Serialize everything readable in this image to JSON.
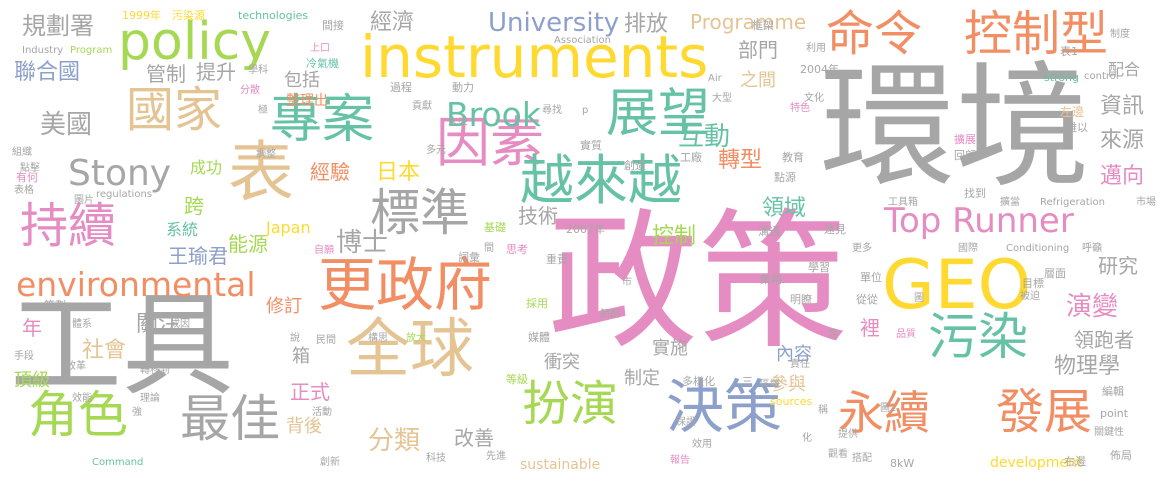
{
  "palette": {
    "pink": "#e58cc2",
    "gray": "#a6a6a6",
    "orange": "#f28e64",
    "green": "#a6d854",
    "yellow": "#ffd92f",
    "tan": "#e5c494",
    "blue": "#8da0cb",
    "teal": "#66c2a5"
  },
  "words": [
    {
      "text": "政策",
      "color": "pink"
    },
    {
      "text": "環境",
      "color": "gray"
    },
    {
      "text": "工具",
      "color": "gray"
    },
    {
      "text": "instruments",
      "color": "yellow"
    },
    {
      "text": "policy",
      "color": "green"
    },
    {
      "text": "GEO",
      "color": "yellow"
    },
    {
      "text": "更政府",
      "color": "orange"
    },
    {
      "text": "全球",
      "color": "tan"
    },
    {
      "text": "決策",
      "color": "blue"
    },
    {
      "text": "表",
      "color": "tan"
    },
    {
      "text": "專案",
      "color": "teal"
    },
    {
      "text": "國家",
      "color": "tan"
    },
    {
      "text": "因素",
      "color": "pink"
    },
    {
      "text": "標準",
      "color": "gray"
    },
    {
      "text": "越來越",
      "color": "teal"
    },
    {
      "text": "展望",
      "color": "teal"
    },
    {
      "text": "命令",
      "color": "orange"
    },
    {
      "text": "控制型",
      "color": "orange"
    },
    {
      "text": "持續",
      "color": "pink"
    },
    {
      "text": "角色",
      "color": "green"
    },
    {
      "text": "最佳",
      "color": "gray"
    },
    {
      "text": "扮演",
      "color": "green"
    },
    {
      "text": "永續",
      "color": "orange"
    },
    {
      "text": "發展",
      "color": "orange"
    },
    {
      "text": "污染",
      "color": "teal"
    },
    {
      "text": "Top Runner",
      "color": "pink"
    },
    {
      "text": "environmental",
      "color": "orange"
    },
    {
      "text": "Stony",
      "color": "gray"
    },
    {
      "text": "Brook",
      "color": "teal"
    },
    {
      "text": "University",
      "color": "blue"
    },
    {
      "text": "經濟",
      "color": "gray"
    },
    {
      "text": "排放",
      "color": "gray"
    },
    {
      "text": "Programme",
      "color": "tan"
    },
    {
      "text": "規劃署",
      "color": "gray"
    },
    {
      "text": "聯合國",
      "color": "blue"
    },
    {
      "text": "美國",
      "color": "gray"
    },
    {
      "text": "管制",
      "color": "gray"
    },
    {
      "text": "提升",
      "color": "gray"
    },
    {
      "text": "包括",
      "color": "gray"
    },
    {
      "text": "整理出",
      "color": "orange"
    },
    {
      "text": "互動",
      "color": "teal"
    },
    {
      "text": "轉型",
      "color": "orange"
    },
    {
      "text": "部門",
      "color": "gray"
    },
    {
      "text": "之間",
      "color": "tan"
    },
    {
      "text": "日本",
      "color": "yellow"
    },
    {
      "text": "經驗",
      "color": "orange"
    },
    {
      "text": "博士",
      "color": "gray"
    },
    {
      "text": "技術",
      "color": "gray"
    },
    {
      "text": "領域",
      "color": "teal"
    },
    {
      "text": "控制",
      "color": "green"
    },
    {
      "text": "資訊",
      "color": "gray"
    },
    {
      "text": "來源",
      "color": "gray"
    },
    {
      "text": "邁向",
      "color": "pink"
    },
    {
      "text": "研究",
      "color": "gray"
    },
    {
      "text": "演變",
      "color": "pink"
    },
    {
      "text": "領跑者",
      "color": "gray"
    },
    {
      "text": "物理學",
      "color": "gray"
    },
    {
      "text": "配合",
      "color": "gray"
    },
    {
      "text": "王瑜君",
      "color": "blue"
    },
    {
      "text": "能源",
      "color": "green"
    },
    {
      "text": "系統",
      "color": "teal"
    },
    {
      "text": "跨",
      "color": "green"
    },
    {
      "text": "成功",
      "color": "green"
    },
    {
      "text": "Japan",
      "color": "yellow"
    },
    {
      "text": "修訂",
      "color": "orange"
    },
    {
      "text": "關注",
      "color": "gray"
    },
    {
      "text": "社會",
      "color": "tan"
    },
    {
      "text": "頂級",
      "color": "green"
    },
    {
      "text": "年",
      "color": "pink"
    },
    {
      "text": "箱",
      "color": "gray"
    },
    {
      "text": "正式",
      "color": "pink"
    },
    {
      "text": "背後",
      "color": "tan"
    },
    {
      "text": "分類",
      "color": "tan"
    },
    {
      "text": "改善",
      "color": "gray"
    },
    {
      "text": "衝突",
      "color": "gray"
    },
    {
      "text": "制定",
      "color": "gray"
    },
    {
      "text": "實施",
      "color": "gray"
    },
    {
      "text": "內容",
      "color": "blue"
    },
    {
      "text": "參與",
      "color": "tan"
    },
    {
      "text": "裡",
      "color": "pink"
    },
    {
      "text": "sustainable",
      "color": "tan"
    },
    {
      "text": "development",
      "color": "yellow"
    },
    {
      "text": "1999年",
      "color": "yellow"
    },
    {
      "text": "污染源",
      "color": "yellow"
    },
    {
      "text": "technologies",
      "color": "teal"
    },
    {
      "text": "間接",
      "color": "gray"
    },
    {
      "text": "框架",
      "color": "gray"
    },
    {
      "text": "制度",
      "color": "gray"
    },
    {
      "text": "Association",
      "color": "gray"
    },
    {
      "text": "Industry",
      "color": "gray"
    },
    {
      "text": "Program",
      "color": "green"
    },
    {
      "text": "上口",
      "color": "pink"
    },
    {
      "text": "學科",
      "color": "gray"
    },
    {
      "text": "冷氣機",
      "color": "teal"
    },
    {
      "text": "過程",
      "color": "gray"
    },
    {
      "text": "動力",
      "color": "gray"
    },
    {
      "text": "Air",
      "color": "gray"
    },
    {
      "text": "2004年",
      "color": "gray"
    },
    {
      "text": "strong",
      "color": "teal"
    },
    {
      "text": "control",
      "color": "gray"
    },
    {
      "text": "表1",
      "color": "gray"
    },
    {
      "text": "利用",
      "color": "gray"
    },
    {
      "text": "極",
      "color": "gray"
    },
    {
      "text": "分散",
      "color": "pink"
    },
    {
      "text": "貢獻",
      "color": "gray"
    },
    {
      "text": "未來",
      "color": "gray"
    },
    {
      "text": "組織",
      "color": "gray"
    },
    {
      "text": "點擊",
      "color": "gray"
    },
    {
      "text": "有何",
      "color": "pink"
    },
    {
      "text": "表格",
      "color": "gray"
    },
    {
      "text": "調整",
      "color": "gray"
    },
    {
      "text": "多元",
      "color": "gray"
    },
    {
      "text": "實質",
      "color": "gray"
    },
    {
      "text": "創造",
      "color": "gray"
    },
    {
      "text": "工廠",
      "color": "gray"
    },
    {
      "text": "教育",
      "color": "gray"
    },
    {
      "text": "特色",
      "color": "pink"
    },
    {
      "text": "文化",
      "color": "gray"
    },
    {
      "text": "點源",
      "color": "gray"
    },
    {
      "text": "擴展",
      "color": "pink"
    },
    {
      "text": "回顧",
      "color": "gray"
    },
    {
      "text": "左邊",
      "color": "tan"
    },
    {
      "text": "難以",
      "color": "gray"
    },
    {
      "text": "市場",
      "color": "gray"
    },
    {
      "text": "找到",
      "color": "gray"
    },
    {
      "text": "工具箱",
      "color": "gray"
    },
    {
      "text": "擴當",
      "color": "gray"
    },
    {
      "text": "Refrigeration",
      "color": "gray"
    },
    {
      "text": "圖片",
      "color": "gray"
    },
    {
      "text": "regulations",
      "color": "gray"
    },
    {
      "text": "基礎",
      "color": "green"
    },
    {
      "text": "2007年",
      "color": "gray"
    },
    {
      "text": "溝通",
      "color": "gray"
    },
    {
      "text": "遠見",
      "color": "gray"
    },
    {
      "text": "更多",
      "color": "gray"
    },
    {
      "text": "國際",
      "color": "gray"
    },
    {
      "text": "Conditioning",
      "color": "gray"
    },
    {
      "text": "呼籲",
      "color": "gray"
    },
    {
      "text": "詞彙",
      "color": "gray"
    },
    {
      "text": "思考",
      "color": "pink"
    },
    {
      "text": "重責",
      "color": "gray"
    },
    {
      "text": "自願",
      "color": "pink"
    },
    {
      "text": "策略",
      "color": "gray"
    },
    {
      "text": "明瞭",
      "color": "gray"
    },
    {
      "text": "學習",
      "color": "gray"
    },
    {
      "text": "單位",
      "color": "gray"
    },
    {
      "text": "從從",
      "color": "gray"
    },
    {
      "text": "目標",
      "color": "gray"
    },
    {
      "text": "層面",
      "color": "gray"
    },
    {
      "text": "被迫",
      "color": "gray"
    },
    {
      "text": "策劃",
      "color": "gray"
    },
    {
      "text": "體系",
      "color": "gray"
    },
    {
      "text": "成因",
      "color": "gray"
    },
    {
      "text": "採用",
      "color": "green"
    },
    {
      "text": "朗朗",
      "color": "gray"
    },
    {
      "text": "構思",
      "color": "gray"
    },
    {
      "text": "放大",
      "color": "green"
    },
    {
      "text": "媒體",
      "color": "gray"
    },
    {
      "text": "民間",
      "color": "gray"
    },
    {
      "text": "品質",
      "color": "pink"
    },
    {
      "text": "手段",
      "color": "gray"
    },
    {
      "text": "改革",
      "color": "gray"
    },
    {
      "text": "轉移到",
      "color": "gray"
    },
    {
      "text": "效能",
      "color": "gray"
    },
    {
      "text": "理論",
      "color": "gray"
    },
    {
      "text": "活動",
      "color": "gray"
    },
    {
      "text": "等級",
      "color": "green"
    },
    {
      "text": "多樣化",
      "color": "gray"
    },
    {
      "text": "三",
      "color": "gray"
    },
    {
      "text": "區域",
      "color": "gray"
    },
    {
      "text": "sources",
      "color": "yellow"
    },
    {
      "text": "稱",
      "color": "gray"
    },
    {
      "text": "圖1",
      "color": "gray"
    },
    {
      "text": "編輯",
      "color": "gray"
    },
    {
      "text": "point",
      "color": "gray"
    },
    {
      "text": "關鍵性",
      "color": "gray"
    },
    {
      "text": "Command",
      "color": "teal"
    },
    {
      "text": "創新",
      "color": "gray"
    },
    {
      "text": "科技",
      "color": "gray"
    },
    {
      "text": "先進",
      "color": "gray"
    },
    {
      "text": "報告",
      "color": "pink"
    },
    {
      "text": "效用",
      "color": "gray"
    },
    {
      "text": "保證",
      "color": "gray"
    },
    {
      "text": "化",
      "color": "gray"
    },
    {
      "text": "提供",
      "color": "gray"
    },
    {
      "text": "觀看",
      "color": "gray"
    },
    {
      "text": "搭配",
      "color": "gray"
    },
    {
      "text": "8kW",
      "color": "gray"
    },
    {
      "text": "右邊",
      "color": "gray"
    },
    {
      "text": "佈局",
      "color": "gray"
    },
    {
      "text": "責任",
      "color": "gray"
    },
    {
      "text": "大型",
      "color": "gray"
    },
    {
      "text": "強",
      "color": "gray"
    },
    {
      "text": "說",
      "color": "gray"
    },
    {
      "text": "遠",
      "color": "gray"
    },
    {
      "text": "間",
      "color": "gray"
    },
    {
      "text": "圖",
      "color": "gray"
    },
    {
      "text": "市",
      "color": "gray"
    },
    {
      "text": "尋找",
      "color": "gray"
    },
    {
      "text": "p",
      "color": "gray"
    }
  ]
}
